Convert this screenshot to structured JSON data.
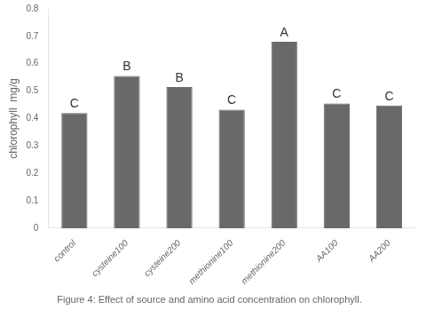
{
  "chart_data": {
    "type": "bar",
    "categories": [
      "control",
      "cysteine100",
      "cysteine200",
      "methionine100",
      "methionine200",
      "AA100",
      "AA200"
    ],
    "values": [
      0.42,
      0.555,
      0.515,
      0.432,
      0.68,
      0.455,
      0.448
    ],
    "annotations": [
      "C",
      "B",
      "B",
      "C",
      "A",
      "C",
      "C"
    ],
    "color": "#696969",
    "ylabel": "chlorophyll  mg/g",
    "caption": "Figure 4: Effect of source and amino acid concentration on chlorophyll.",
    "ylim": [
      0,
      0.8
    ],
    "yticks": [
      0,
      0.1,
      0.2,
      0.3,
      0.4,
      0.5,
      0.6,
      0.7,
      0.8
    ],
    "grid": false
  }
}
